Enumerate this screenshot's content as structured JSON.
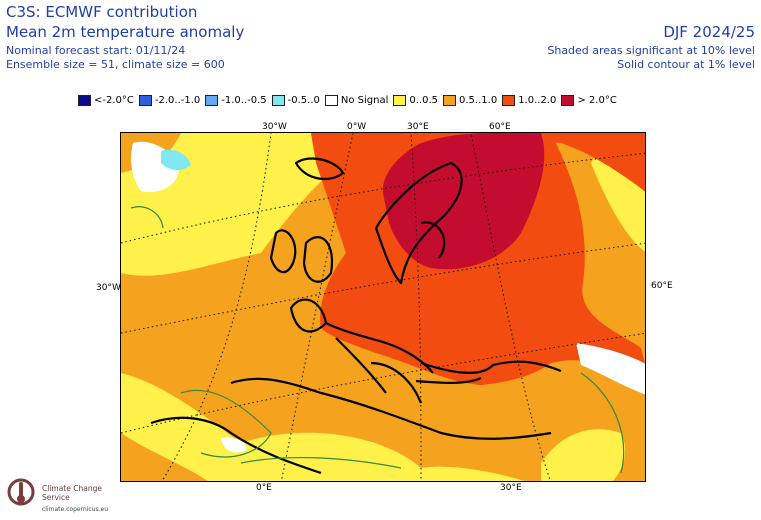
{
  "header": {
    "title": "C3S: ECMWF contribution",
    "subtitle": "Mean 2m temperature anomaly",
    "forecast_start": "Nominal forecast start: 01/11/24",
    "ensemble": "Ensemble size = 51, climate size = 600",
    "season": "DJF 2024/25",
    "shading_note": "Shaded areas significant at 10% level",
    "contour_note": "Solid contour at 1% level"
  },
  "legend": [
    {
      "label": "<-2.0°C",
      "color": "#0a0a8c"
    },
    {
      "label": "-2.0..-1.0",
      "color": "#2a5fe0"
    },
    {
      "label": "-1.0..-0.5",
      "color": "#66a8f0"
    },
    {
      "label": "-0.5..0",
      "color": "#7fe8f2"
    },
    {
      "label": "No Signal",
      "color": "#ffffff"
    },
    {
      "label": "0..0.5",
      "color": "#fff04a"
    },
    {
      "label": "0.5..1.0",
      "color": "#f5a21f"
    },
    {
      "label": "1.0..2.0",
      "color": "#f24c10"
    },
    {
      "label": "> 2.0°C",
      "color": "#c40c2e"
    }
  ],
  "axes": {
    "top": [
      "30°W",
      "0°W",
      "30°E",
      "60°E"
    ],
    "left": "30°W",
    "right": "60°E",
    "bottom": [
      "0°E",
      "30°E"
    ]
  },
  "logo": {
    "name": "Climate Change Service",
    "url": "climate.copernicus.eu"
  }
}
